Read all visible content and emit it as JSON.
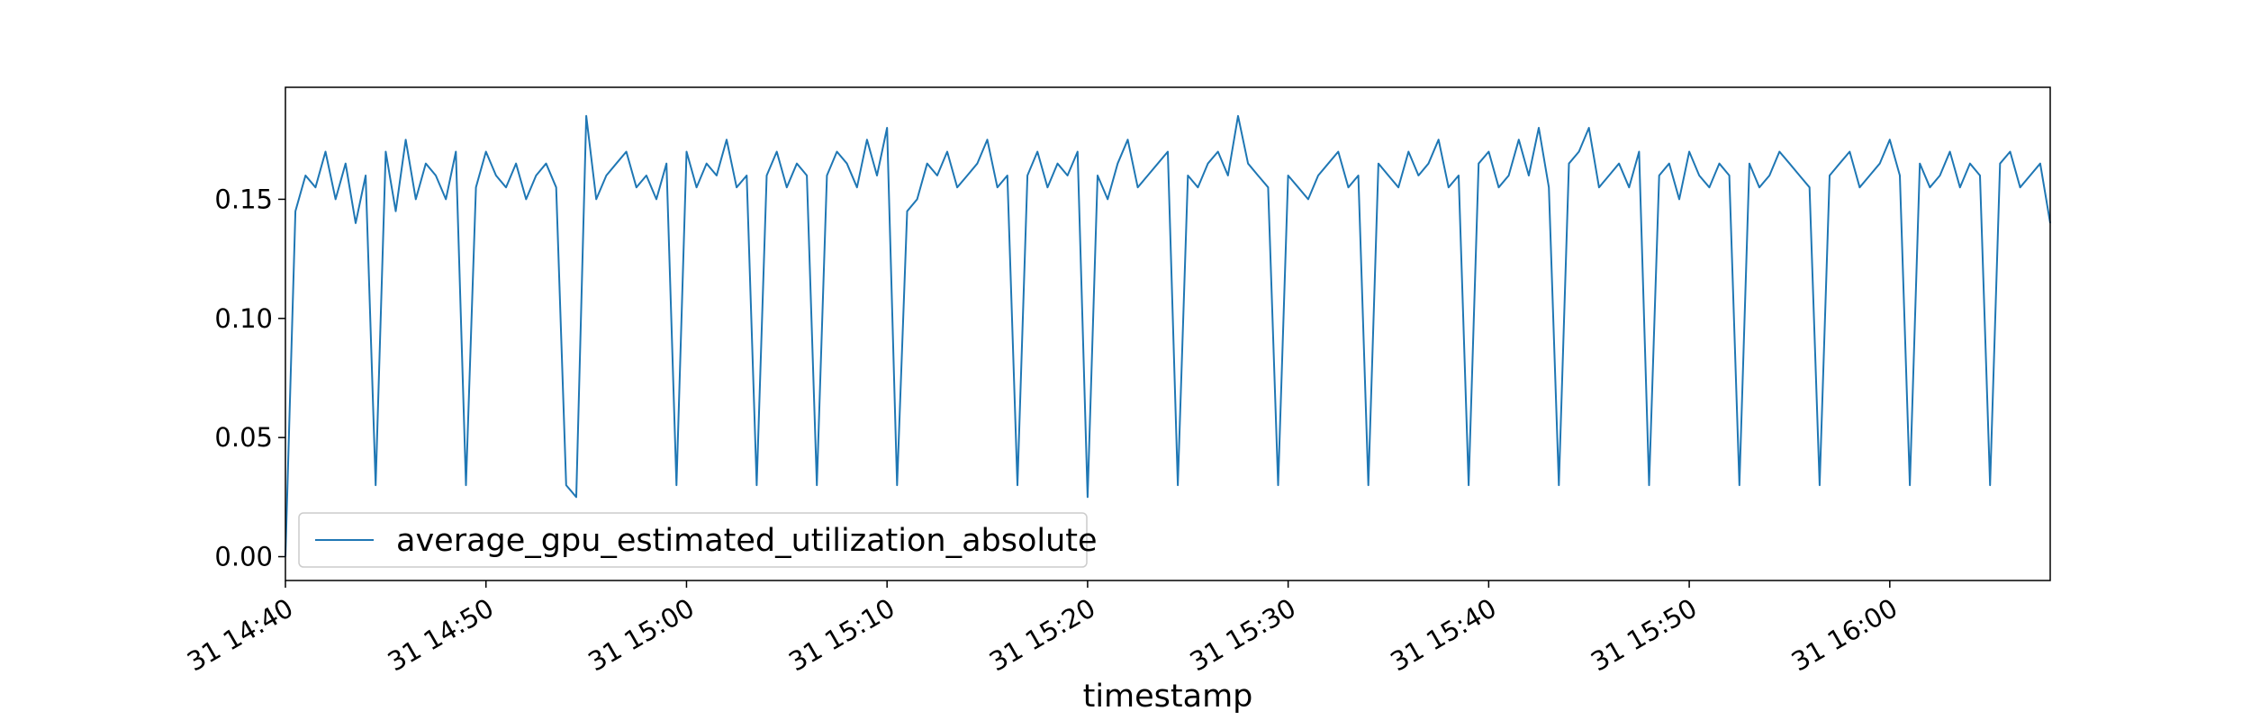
{
  "chart_data": {
    "type": "line",
    "title": "",
    "xlabel": "timestamp",
    "ylabel": "",
    "x_axis_type": "time",
    "xlim": [
      "14:40",
      "16:08"
    ],
    "ylim": [
      -0.01,
      0.197
    ],
    "grid": false,
    "legend_position": "lower-left",
    "x_ticks": [
      {
        "time": "14:40",
        "label": "31 14:40"
      },
      {
        "time": "14:50",
        "label": "31 14:50"
      },
      {
        "time": "15:00",
        "label": "31 15:00"
      },
      {
        "time": "15:10",
        "label": "31 15:10"
      },
      {
        "time": "15:20",
        "label": "31 15:20"
      },
      {
        "time": "15:30",
        "label": "31 15:30"
      },
      {
        "time": "15:40",
        "label": "31 15:40"
      },
      {
        "time": "15:50",
        "label": "31 15:50"
      },
      {
        "time": "16:00",
        "label": "31 16:00"
      }
    ],
    "y_ticks": [
      {
        "value": 0.0,
        "label": "0.00"
      },
      {
        "value": 0.05,
        "label": "0.05"
      },
      {
        "value": 0.1,
        "label": "0.10"
      },
      {
        "value": 0.15,
        "label": "0.15"
      }
    ],
    "series": [
      {
        "name": "average_gpu_estimated_utilization_absolute",
        "color": "#1f77b4",
        "x": [
          "14:40",
          "14:40:30",
          "14:41",
          "14:41:30",
          "14:42",
          "14:42:30",
          "14:43",
          "14:43:30",
          "14:44",
          "14:44:30",
          "14:45",
          "14:45:30",
          "14:46",
          "14:46:30",
          "14:47",
          "14:47:30",
          "14:48",
          "14:48:30",
          "14:49",
          "14:49:30",
          "14:50",
          "14:50:30",
          "14:51",
          "14:51:30",
          "14:52",
          "14:52:30",
          "14:53",
          "14:53:30",
          "14:54",
          "14:54:30",
          "14:55",
          "14:55:30",
          "14:56",
          "14:56:30",
          "14:57",
          "14:57:30",
          "14:58",
          "14:58:30",
          "14:59",
          "14:59:30",
          "15:00",
          "15:00:30",
          "15:01",
          "15:01:30",
          "15:02",
          "15:02:30",
          "15:03",
          "15:03:30",
          "15:04",
          "15:04:30",
          "15:05",
          "15:05:30",
          "15:06",
          "15:06:30",
          "15:07",
          "15:07:30",
          "15:08",
          "15:08:30",
          "15:09",
          "15:09:30",
          "15:10",
          "15:10:30",
          "15:11",
          "15:11:30",
          "15:12",
          "15:12:30",
          "15:13",
          "15:13:30",
          "15:14",
          "15:14:30",
          "15:15",
          "15:15:30",
          "15:16",
          "15:16:30",
          "15:17",
          "15:17:30",
          "15:18",
          "15:18:30",
          "15:19",
          "15:19:30",
          "15:20",
          "15:20:30",
          "15:21",
          "15:21:30",
          "15:22",
          "15:22:30",
          "15:23",
          "15:23:30",
          "15:24",
          "15:24:30",
          "15:25",
          "15:25:30",
          "15:26",
          "15:26:30",
          "15:27",
          "15:27:30",
          "15:28",
          "15:28:30",
          "15:29",
          "15:29:30",
          "15:30",
          "15:30:30",
          "15:31",
          "15:31:30",
          "15:32",
          "15:32:30",
          "15:33",
          "15:33:30",
          "15:34",
          "15:34:30",
          "15:35",
          "15:35:30",
          "15:36",
          "15:36:30",
          "15:37",
          "15:37:30",
          "15:38",
          "15:38:30",
          "15:39",
          "15:39:30",
          "15:40",
          "15:40:30",
          "15:41",
          "15:41:30",
          "15:42",
          "15:42:30",
          "15:43",
          "15:43:30",
          "15:44",
          "15:44:30",
          "15:45",
          "15:45:30",
          "15:46",
          "15:46:30",
          "15:47",
          "15:47:30",
          "15:48",
          "15:48:30",
          "15:49",
          "15:49:30",
          "15:50",
          "15:50:30",
          "15:51",
          "15:51:30",
          "15:52",
          "15:52:30",
          "15:53",
          "15:53:30",
          "15:54",
          "15:54:30",
          "15:55",
          "15:55:30",
          "15:56",
          "15:56:30",
          "15:57",
          "15:57:30",
          "15:58",
          "15:58:30",
          "15:59",
          "15:59:30",
          "16:00",
          "16:00:30",
          "16:01",
          "16:01:30",
          "16:02",
          "16:02:30",
          "16:03",
          "16:03:30",
          "16:04",
          "16:04:30",
          "16:05",
          "16:05:30",
          "16:06",
          "16:06:30",
          "16:07",
          "16:07:30",
          "16:08"
        ],
        "y": [
          0.0,
          0.145,
          0.16,
          0.155,
          0.17,
          0.15,
          0.165,
          0.14,
          0.16,
          0.03,
          0.17,
          0.145,
          0.175,
          0.15,
          0.165,
          0.16,
          0.15,
          0.17,
          0.03,
          0.155,
          0.17,
          0.16,
          0.155,
          0.165,
          0.15,
          0.16,
          0.165,
          0.155,
          0.03,
          0.025,
          0.185,
          0.15,
          0.16,
          0.165,
          0.17,
          0.155,
          0.16,
          0.15,
          0.165,
          0.03,
          0.17,
          0.155,
          0.165,
          0.16,
          0.175,
          0.155,
          0.16,
          0.03,
          0.16,
          0.17,
          0.155,
          0.165,
          0.16,
          0.03,
          0.16,
          0.17,
          0.165,
          0.155,
          0.175,
          0.16,
          0.18,
          0.03,
          0.145,
          0.15,
          0.165,
          0.16,
          0.17,
          0.155,
          0.16,
          0.165,
          0.175,
          0.155,
          0.16,
          0.03,
          0.16,
          0.17,
          0.155,
          0.165,
          0.16,
          0.17,
          0.025,
          0.16,
          0.15,
          0.165,
          0.175,
          0.155,
          0.16,
          0.165,
          0.17,
          0.03,
          0.16,
          0.155,
          0.165,
          0.17,
          0.16,
          0.185,
          0.165,
          0.16,
          0.155,
          0.03,
          0.16,
          0.155,
          0.15,
          0.16,
          0.165,
          0.17,
          0.155,
          0.16,
          0.03,
          0.165,
          0.16,
          0.155,
          0.17,
          0.16,
          0.165,
          0.175,
          0.155,
          0.16,
          0.03,
          0.165,
          0.17,
          0.155,
          0.16,
          0.175,
          0.16,
          0.18,
          0.155,
          0.03,
          0.165,
          0.17,
          0.18,
          0.155,
          0.16,
          0.165,
          0.155,
          0.17,
          0.03,
          0.16,
          0.165,
          0.15,
          0.17,
          0.16,
          0.155,
          0.165,
          0.16,
          0.03,
          0.165,
          0.155,
          0.16,
          0.17,
          0.165,
          0.16,
          0.155,
          0.03,
          0.16,
          0.165,
          0.17,
          0.155,
          0.16,
          0.165,
          0.175,
          0.16,
          0.03,
          0.165,
          0.155,
          0.16,
          0.17,
          0.155,
          0.165,
          0.16,
          0.03,
          0.165,
          0.17,
          0.155,
          0.16,
          0.165,
          0.14
        ]
      }
    ]
  }
}
